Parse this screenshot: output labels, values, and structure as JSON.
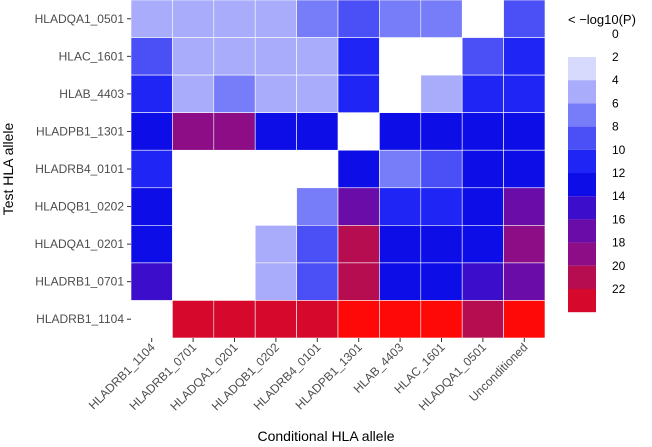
{
  "chart_data": {
    "type": "heatmap",
    "xlabel": "Conditional HLA allele",
    "ylabel": "Test HLA allele",
    "x_categories": [
      "HLADRB1_1104",
      "HLADRB1_0701",
      "HLADQA1_0201",
      "HLADQB1_0202",
      "HLADRB4_0101",
      "HLADPB1_1301",
      "HLAB_4403",
      "HLAC_1601",
      "HLADQA1_0501",
      "Unconditioned"
    ],
    "y_categories": [
      "HLADQA1_0501",
      "HLAC_1601",
      "HLAB_4403",
      "HLADPB1_1301",
      "HLADRB4_0101",
      "HLADQB1_0202",
      "HLADQA1_0201",
      "HLADRB1_0701",
      "HLADRB1_1104"
    ],
    "values": [
      [
        2,
        2,
        2,
        2,
        5,
        7,
        5,
        5,
        null,
        7
      ],
      [
        7,
        2,
        2,
        2,
        2,
        8,
        null,
        null,
        7,
        8
      ],
      [
        8,
        2,
        4,
        2,
        2,
        8,
        null,
        2,
        8,
        8
      ],
      [
        11,
        16,
        16,
        11,
        11,
        null,
        11,
        10,
        10,
        10
      ],
      [
        8,
        null,
        null,
        null,
        null,
        11,
        5,
        7,
        10,
        10
      ],
      [
        11,
        null,
        null,
        null,
        4,
        14,
        8,
        8,
        10,
        14
      ],
      [
        11,
        null,
        null,
        2,
        6,
        18,
        10,
        10,
        11,
        16
      ],
      [
        13,
        null,
        null,
        2,
        6,
        18,
        10,
        10,
        12,
        15
      ],
      [
        null,
        20,
        20,
        20,
        20,
        22,
        22,
        22,
        18,
        22
      ]
    ],
    "legend": {
      "title": "< −log10(P)",
      "labels": [
        "0",
        "2",
        "4",
        "6",
        "8",
        "10",
        "12",
        "14",
        "16",
        "18",
        "20",
        "22"
      ],
      "bins": [
        1,
        3,
        5,
        7,
        9,
        11,
        13,
        15,
        17,
        19,
        21,
        23
      ],
      "colors": [
        "#d8dafd",
        "#a9acfa",
        "#777cf8",
        "#4a50f6",
        "#1e25f4",
        "#0d0de8",
        "#3d0dcc",
        "#6a0da8",
        "#8c0d86",
        "#b50d4f",
        "#d6082c",
        "#ff0808"
      ]
    }
  }
}
